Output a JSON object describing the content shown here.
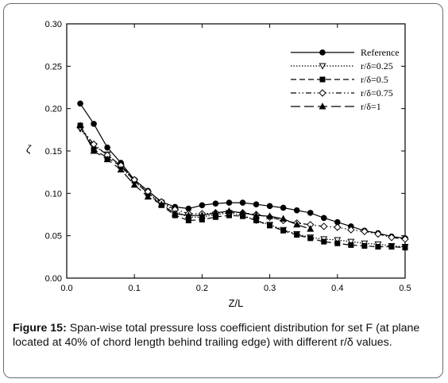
{
  "chart_data": {
    "type": "line",
    "xlabel": "Z/L",
    "ylabel": "ζ",
    "xlim": [
      0.0,
      0.5
    ],
    "ylim": [
      0.0,
      0.3
    ],
    "x_ticks": [
      "0.0",
      "0.1",
      "0.2",
      "0.3",
      "0.4",
      "0.5"
    ],
    "y_ticks": [
      "0.00",
      "0.05",
      "0.10",
      "0.15",
      "0.20",
      "0.25",
      "0.30"
    ],
    "legend_position": "top-right",
    "grid": false,
    "series": [
      {
        "name": "Reference",
        "marker": "filled-circle",
        "dash": "solid",
        "points": [
          [
            0.02,
            0.206
          ],
          [
            0.04,
            0.182
          ],
          [
            0.06,
            0.154
          ],
          [
            0.08,
            0.136
          ],
          [
            0.1,
            0.116
          ],
          [
            0.12,
            0.103
          ],
          [
            0.14,
            0.09
          ],
          [
            0.16,
            0.084
          ],
          [
            0.18,
            0.082
          ],
          [
            0.2,
            0.086
          ],
          [
            0.22,
            0.088
          ],
          [
            0.24,
            0.089
          ],
          [
            0.26,
            0.089
          ],
          [
            0.28,
            0.087
          ],
          [
            0.3,
            0.085
          ],
          [
            0.32,
            0.083
          ],
          [
            0.34,
            0.08
          ],
          [
            0.36,
            0.077
          ],
          [
            0.38,
            0.071
          ],
          [
            0.4,
            0.066
          ],
          [
            0.42,
            0.061
          ],
          [
            0.44,
            0.056
          ],
          [
            0.46,
            0.053
          ],
          [
            0.48,
            0.049
          ],
          [
            0.5,
            0.047
          ]
        ]
      },
      {
        "name": "r/δ=0.25",
        "marker": "open-triangle-down",
        "dash": "dotted",
        "points": [
          [
            0.02,
            0.176
          ],
          [
            0.04,
            0.156
          ],
          [
            0.06,
            0.146
          ],
          [
            0.08,
            0.132
          ],
          [
            0.1,
            0.114
          ],
          [
            0.12,
            0.1
          ],
          [
            0.14,
            0.089
          ],
          [
            0.16,
            0.079
          ],
          [
            0.18,
            0.072
          ],
          [
            0.2,
            0.072
          ],
          [
            0.22,
            0.075
          ],
          [
            0.24,
            0.077
          ],
          [
            0.26,
            0.074
          ],
          [
            0.28,
            0.068
          ],
          [
            0.3,
            0.063
          ],
          [
            0.32,
            0.057
          ],
          [
            0.34,
            0.052
          ],
          [
            0.36,
            0.048
          ],
          [
            0.38,
            0.046
          ],
          [
            0.4,
            0.045
          ],
          [
            0.42,
            0.043
          ],
          [
            0.44,
            0.041
          ],
          [
            0.46,
            0.04
          ],
          [
            0.48,
            0.038
          ],
          [
            0.5,
            0.037
          ]
        ]
      },
      {
        "name": "r/δ=0.5",
        "marker": "filled-square",
        "dash": "dashed",
        "points": [
          [
            0.02,
            0.18
          ],
          [
            0.04,
            0.152
          ],
          [
            0.06,
            0.142
          ],
          [
            0.08,
            0.132
          ],
          [
            0.1,
            0.115
          ],
          [
            0.12,
            0.1
          ],
          [
            0.14,
            0.086
          ],
          [
            0.16,
            0.074
          ],
          [
            0.18,
            0.068
          ],
          [
            0.2,
            0.069
          ],
          [
            0.22,
            0.072
          ],
          [
            0.24,
            0.074
          ],
          [
            0.26,
            0.073
          ],
          [
            0.28,
            0.068
          ],
          [
            0.3,
            0.062
          ],
          [
            0.32,
            0.056
          ],
          [
            0.34,
            0.051
          ],
          [
            0.36,
            0.047
          ],
          [
            0.38,
            0.043
          ],
          [
            0.4,
            0.041
          ],
          [
            0.42,
            0.039
          ],
          [
            0.44,
            0.038
          ],
          [
            0.46,
            0.037
          ],
          [
            0.48,
            0.037
          ],
          [
            0.5,
            0.036
          ]
        ]
      },
      {
        "name": "r/δ=0.75",
        "marker": "open-diamond",
        "dash": "dash-dot-dot",
        "points": [
          [
            0.02,
            0.178
          ],
          [
            0.04,
            0.158
          ],
          [
            0.06,
            0.145
          ],
          [
            0.08,
            0.133
          ],
          [
            0.1,
            0.116
          ],
          [
            0.12,
            0.102
          ],
          [
            0.14,
            0.09
          ],
          [
            0.16,
            0.081
          ],
          [
            0.18,
            0.076
          ],
          [
            0.2,
            0.076
          ],
          [
            0.22,
            0.077
          ],
          [
            0.24,
            0.078
          ],
          [
            0.26,
            0.077
          ],
          [
            0.28,
            0.075
          ],
          [
            0.3,
            0.072
          ],
          [
            0.32,
            0.068
          ],
          [
            0.34,
            0.065
          ],
          [
            0.36,
            0.063
          ],
          [
            0.38,
            0.061
          ],
          [
            0.4,
            0.06
          ],
          [
            0.42,
            0.057
          ],
          [
            0.44,
            0.055
          ],
          [
            0.46,
            0.052
          ],
          [
            0.48,
            0.048
          ],
          [
            0.5,
            0.046
          ]
        ]
      },
      {
        "name": "r/δ=1",
        "marker": "filled-triangle-up",
        "dash": "long-dash",
        "points": [
          [
            0.02,
            0.18
          ],
          [
            0.04,
            0.15
          ],
          [
            0.06,
            0.14
          ],
          [
            0.08,
            0.128
          ],
          [
            0.1,
            0.11
          ],
          [
            0.12,
            0.096
          ],
          [
            0.14,
            0.087
          ],
          [
            0.16,
            0.076
          ],
          [
            0.18,
            0.074
          ],
          [
            0.2,
            0.074
          ],
          [
            0.22,
            0.077
          ],
          [
            0.24,
            0.079
          ],
          [
            0.26,
            0.077
          ],
          [
            0.28,
            0.074
          ],
          [
            0.3,
            0.073
          ],
          [
            0.32,
            0.07
          ],
          [
            0.34,
            0.063
          ],
          [
            0.36,
            0.058
          ]
        ]
      }
    ]
  },
  "caption": {
    "label": "Figure 15:",
    "text": " Span-wise total pressure loss coefficient distribution for set F (at plane located at 40% of chord length behind trailing edge) with different r/δ values."
  }
}
